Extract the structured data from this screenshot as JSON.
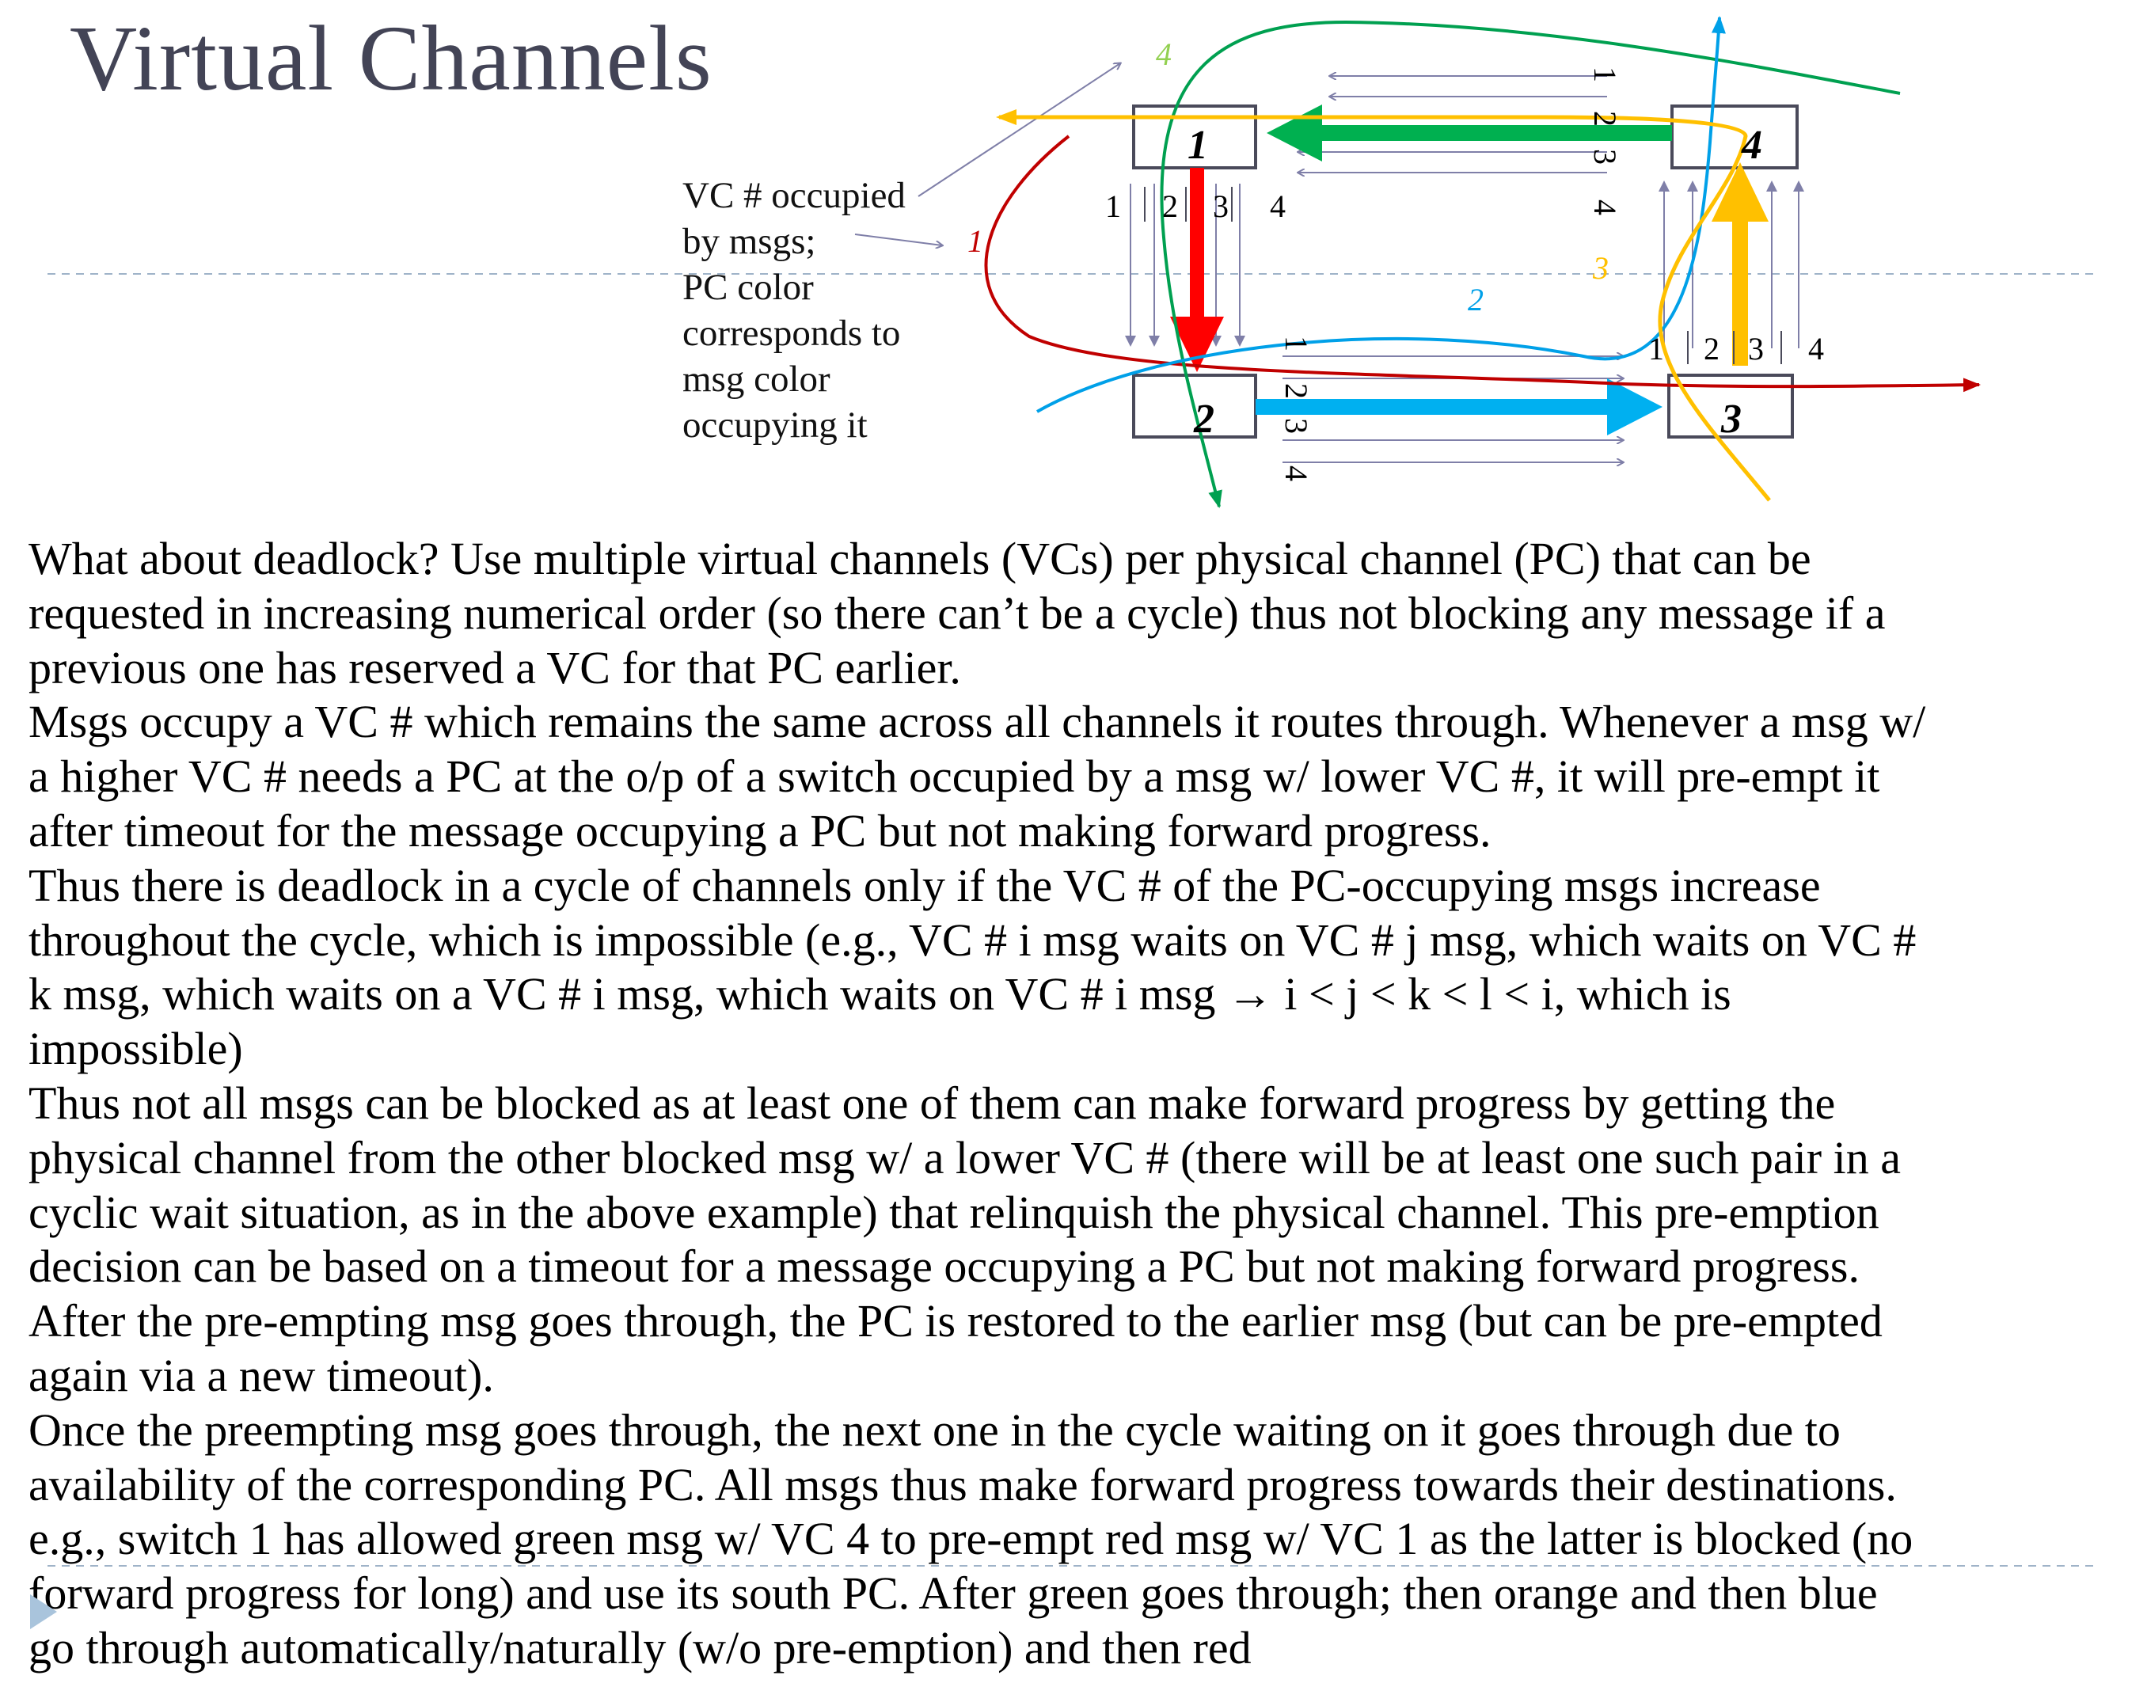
{
  "slide": {
    "title": "Virtual Channels",
    "legend_lines": [
      "VC # occupied",
      "by msgs;",
      "PC color",
      "corresponds to",
      "msg color",
      "occupying it"
    ],
    "paragraphs": [
      [
        "What about deadlock?  Use multiple virtual channels (VCs) per physical channel (PC) that can be",
        "requested in increasing numerical order (so there can’t be a cycle) thus not blocking any message if a",
        "previous one has reserved a VC for that PC earlier."
      ],
      [
        "Msgs occupy a VC # which remains the same across all channels it routes through.  Whenever a msg w/",
        "a higher VC # needs a PC at the o/p of a switch occupied by a msg w/ lower VC #, it will pre-empt it",
        "after timeout for the message occupying a PC but not making forward progress."
      ],
      [
        "Thus there is deadlock in a cycle of channels only if the VC # of the PC-occupying msgs increase",
        "throughout the cycle, which is impossible (e.g., VC # i msg waits on VC # j msg, which waits on VC #",
        "k  msg, which waits on a VC # i msg, which waits on VC # i msg → i < j < k < l < i, which is",
        "impossible)"
      ],
      [
        "Thus not all msgs can be blocked as at least one of them can make forward progress by getting the",
        "physical channel from the other blocked msg w/ a lower VC # (there will be at least one such pair in a",
        "cyclic wait situation, as in the above example) that relinquish the physical channel.  This pre-emption",
        "decision can be based on a timeout for a message occupying a PC but not making forward progress.",
        "After the pre-empting msg goes through,  the PC is restored to the earlier msg (but can be pre-empted",
        "again via a new timeout)."
      ],
      [
        "Once the preempting msg goes through, the next one in the cycle waiting on it goes through due to",
        "availability of the corresponding PC. All msgs thus make forward progress towards their destinations.",
        "e.g.,  switch 1 has allowed green msg w/ VC  4 to pre-empt red msg w/ VC 1 as the latter is blocked (no",
        "forward progress for long) and use its south PC.  After green goes through;  then orange and then blue",
        "go through automatically/naturally (w/o pre-emption) and then red"
      ]
    ]
  },
  "diagram": {
    "switches": [
      {
        "id": "1",
        "label": "1"
      },
      {
        "id": "2",
        "label": "2"
      },
      {
        "id": "3",
        "label": "3"
      },
      {
        "id": "4",
        "label": "4"
      }
    ],
    "vc_labels": [
      "1",
      "2",
      "3",
      "4"
    ],
    "messages": [
      {
        "vc": "1",
        "color": "#c00000",
        "name": "red"
      },
      {
        "vc": "2",
        "color": "#00b0f0",
        "name": "blue"
      },
      {
        "vc": "3",
        "color": "#ffc000",
        "name": "orange"
      },
      {
        "vc": "4",
        "color": "#92d050",
        "name": "green"
      }
    ],
    "pc_colors": {
      "north_pc": "#00b050",
      "west_pc": "#ff0000",
      "south_pc": "#00b0f0",
      "east_pc": "#ffc000",
      "channel_lines": "#7f7fa8",
      "switch_border": "#4a4a5a"
    }
  }
}
